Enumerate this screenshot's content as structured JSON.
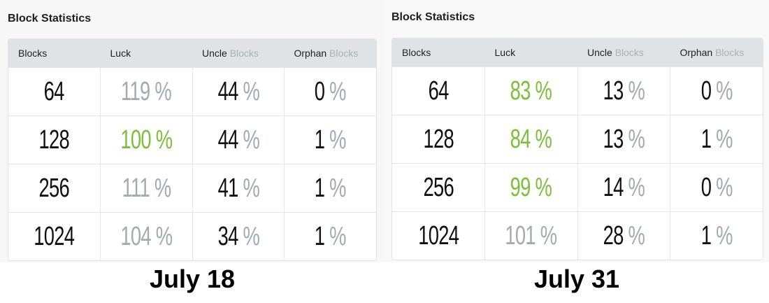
{
  "panels": [
    {
      "title": "Block Statistics",
      "caption": "July 18",
      "headers": {
        "blocks": "Blocks",
        "luck": "Luck",
        "uncle": "Uncle",
        "uncle_muted": "Blocks",
        "orphan": "Orphan",
        "orphan_muted": "Blocks"
      },
      "rows": [
        {
          "blocks": "64",
          "luck": "119 %",
          "luck_color": "gray",
          "uncle": "44",
          "orphan": "0"
        },
        {
          "blocks": "128",
          "luck": "100 %",
          "luck_color": "green",
          "uncle": "44",
          "orphan": "1"
        },
        {
          "blocks": "256",
          "luck": "111 %",
          "luck_color": "gray",
          "uncle": "41",
          "orphan": "1"
        },
        {
          "blocks": "1024",
          "luck": "104 %",
          "luck_color": "gray",
          "uncle": "34",
          "orphan": "1"
        }
      ]
    },
    {
      "title": "Block Statistics",
      "caption": "July 31",
      "headers": {
        "blocks": "Blocks",
        "luck": "Luck",
        "uncle": "Uncle",
        "uncle_muted": "Blocks",
        "orphan": "Orphan",
        "orphan_muted": "Blocks"
      },
      "rows": [
        {
          "blocks": "64",
          "luck": "83 %",
          "luck_color": "green",
          "uncle": "13",
          "orphan": "0"
        },
        {
          "blocks": "128",
          "luck": "84 %",
          "luck_color": "green",
          "uncle": "13",
          "orphan": "1"
        },
        {
          "blocks": "256",
          "luck": "99 %",
          "luck_color": "green",
          "uncle": "14",
          "orphan": "0"
        },
        {
          "blocks": "1024",
          "luck": "101 %",
          "luck_color": "gray",
          "uncle": "28",
          "orphan": "1"
        }
      ]
    }
  ],
  "pct": "%",
  "colors": {
    "green": "#7bbf3a",
    "gray": "#a3aab0"
  }
}
